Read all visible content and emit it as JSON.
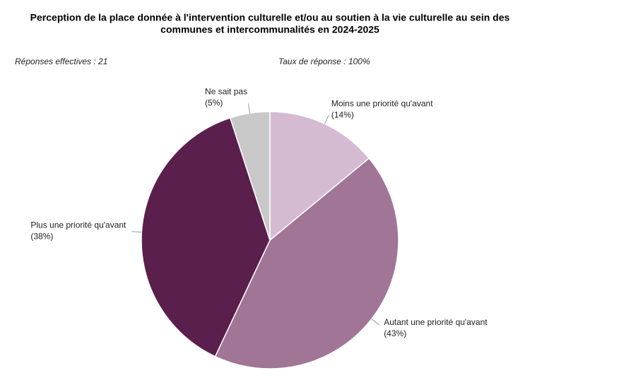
{
  "chart_data": {
    "type": "pie",
    "title": [
      "Perception de la place donnée à l'intervention culturelle et/ou au soutien à la vie culturelle au sein des",
      "communes et intercommunalités en 2024-2025"
    ],
    "annotations": [
      "Réponses effectives : 21",
      "Taux de réponse : 100%"
    ],
    "categories": [
      "Moins une priorité qu'avant",
      "Autant une priorité qu'avant",
      "Plus une priorité qu'avant",
      "Ne sait pas"
    ],
    "values": [
      14,
      43,
      38,
      5
    ],
    "value_labels": [
      "(14%)",
      "(43%)",
      "(38%)",
      "(5%)"
    ],
    "colors": [
      "#d4bbd2",
      "#a07596",
      "#5a1f4c",
      "#c8c8c8"
    ]
  }
}
